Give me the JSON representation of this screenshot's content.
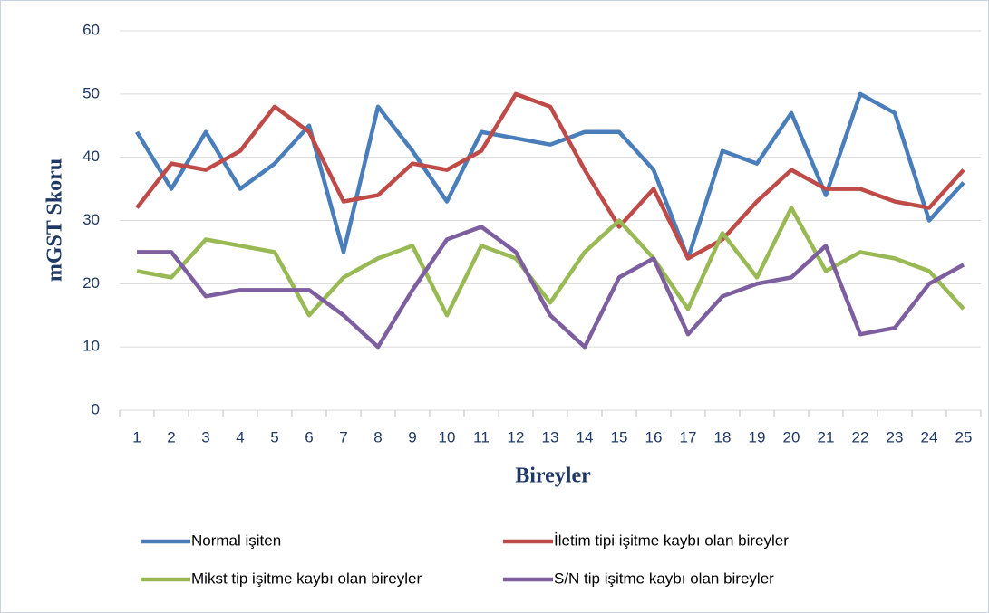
{
  "chart_data": {
    "type": "line",
    "x_label": "Bireyler",
    "y_label": "mGST Skoru",
    "categories": [
      "1",
      "2",
      "3",
      "4",
      "5",
      "6",
      "7",
      "8",
      "9",
      "10",
      "11",
      "12",
      "13",
      "14",
      "15",
      "16",
      "17",
      "18",
      "19",
      "20",
      "21",
      "22",
      "23",
      "24",
      "25"
    ],
    "series": [
      {
        "name": "Normal işiten",
        "color": "#4a7ebb",
        "values": [
          44,
          35,
          44,
          35,
          39,
          45,
          25,
          48,
          41,
          33,
          44,
          43,
          42,
          44,
          44,
          38,
          24,
          41,
          39,
          47,
          34,
          50,
          47,
          30,
          36
        ]
      },
      {
        "name": "İletim tipi işitme kaybı olan bireyler",
        "color": "#be4b48",
        "values": [
          32,
          39,
          38,
          41,
          48,
          44,
          33,
          34,
          39,
          38,
          41,
          50,
          48,
          38,
          29,
          35,
          24,
          27,
          33,
          38,
          35,
          35,
          33,
          32,
          38
        ]
      },
      {
        "name": "Mikst tip işitme kaybı olan bireyler",
        "color": "#98b954",
        "values": [
          22,
          21,
          27,
          26,
          25,
          15,
          21,
          24,
          26,
          15,
          26,
          24,
          17,
          25,
          30,
          24,
          16,
          28,
          21,
          32,
          22,
          25,
          24,
          22,
          16
        ]
      },
      {
        "name": "S/N tip işitme kaybı olan bireyler",
        "color": "#7d5fa0",
        "values": [
          25,
          25,
          18,
          19,
          19,
          19,
          15,
          10,
          19,
          27,
          29,
          25,
          15,
          10,
          21,
          24,
          12,
          18,
          20,
          21,
          26,
          12,
          13,
          20,
          23
        ]
      }
    ],
    "ylim": [
      0,
      60
    ],
    "yticks": [
      0,
      10,
      20,
      30,
      40,
      50,
      60
    ],
    "grid": true,
    "legend": "bottom"
  }
}
